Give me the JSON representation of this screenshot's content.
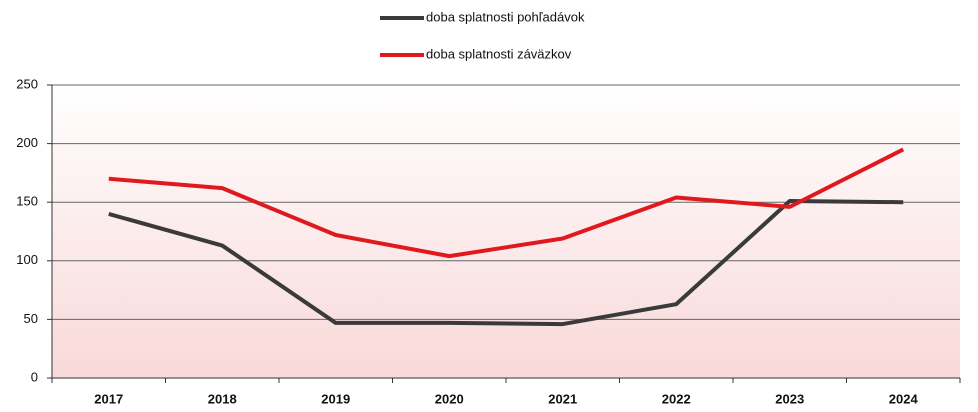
{
  "chart_data": {
    "type": "line",
    "categories": [
      "2017",
      "2018",
      "2019",
      "2020",
      "2021",
      "2022",
      "2023",
      "2024"
    ],
    "series": [
      {
        "name": "doba splatnosti pohľadávok",
        "color": "#3a3a3a",
        "values": [
          140,
          113,
          47,
          47,
          46,
          63,
          151,
          150
        ]
      },
      {
        "name": "doba splatnosti záväzkov",
        "color": "#e0191e",
        "values": [
          170,
          162,
          122,
          104,
          119,
          154,
          146,
          195
        ]
      }
    ],
    "ylim": [
      0,
      250
    ],
    "yticks": [
      0,
      50,
      100,
      150,
      200,
      250
    ],
    "grid": true
  }
}
